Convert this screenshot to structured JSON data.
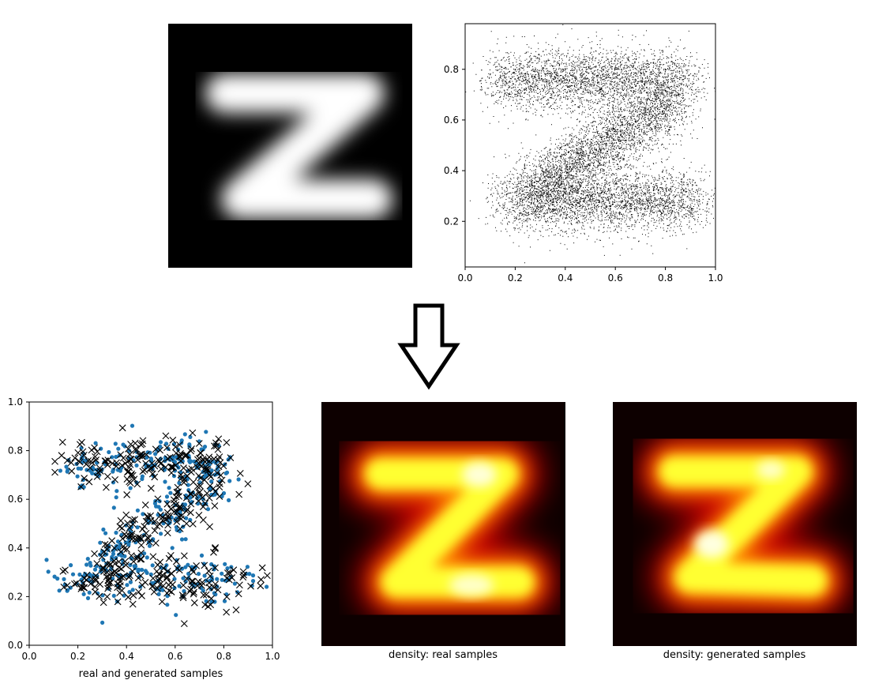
{
  "chart_data": [
    {
      "type": "image",
      "title": "",
      "xlabel": "",
      "ylabel": "",
      "colormap": "gray",
      "depicts": "Z"
    },
    {
      "type": "scatter",
      "title": "",
      "xlabel": "",
      "ylabel": "",
      "xlim": [
        0,
        1.0
      ],
      "ylim": [
        0.02,
        0.98
      ],
      "xticks": [
        "0.0",
        "0.2",
        "0.4",
        "0.6",
        "0.8",
        "1.0"
      ],
      "yticks": [
        "0.2",
        "0.4",
        "0.6",
        "0.8"
      ],
      "marker": "pixel",
      "color": "#000000",
      "point_count_approx": 12000,
      "shape_segments": [
        {
          "from": [
            0.13,
            0.76
          ],
          "to": [
            0.88,
            0.76
          ],
          "spread": 0.06
        },
        {
          "from": [
            0.84,
            0.68
          ],
          "to": [
            0.26,
            0.32
          ],
          "spread": 0.06
        },
        {
          "from": [
            0.17,
            0.28
          ],
          "to": [
            0.92,
            0.28
          ],
          "spread": 0.06
        }
      ]
    },
    {
      "type": "scatter",
      "title": "",
      "xlabel": "real and generated samples",
      "ylabel": "",
      "xlim": [
        0.0,
        1.0
      ],
      "ylim": [
        0.0,
        1.0
      ],
      "xticks": [
        "0.0",
        "0.2",
        "0.4",
        "0.6",
        "0.8",
        "1.0"
      ],
      "yticks": [
        "0.0",
        "0.2",
        "0.4",
        "0.6",
        "0.8",
        "1.0"
      ],
      "series": [
        {
          "marker": "dot",
          "color": "#1f77b4",
          "count_approx": 500
        },
        {
          "marker": "x",
          "color": "#000000",
          "count_approx": 500
        }
      ],
      "shape_segments": [
        {
          "from": [
            0.17,
            0.75
          ],
          "to": [
            0.82,
            0.75
          ],
          "spread": 0.05
        },
        {
          "from": [
            0.78,
            0.68
          ],
          "to": [
            0.3,
            0.34
          ],
          "spread": 0.05
        },
        {
          "from": [
            0.17,
            0.27
          ],
          "to": [
            0.92,
            0.27
          ],
          "spread": 0.05
        }
      ]
    },
    {
      "type": "heatmap",
      "title": "",
      "xlabel": "density: real samples",
      "ylabel": "",
      "colormap": "hot",
      "depicts": "Z"
    },
    {
      "type": "heatmap",
      "title": "",
      "xlabel": "density: generated samples",
      "ylabel": "",
      "colormap": "hot",
      "depicts": "Z"
    }
  ],
  "arrow": {
    "direction": "down",
    "icon": "down-arrow-icon"
  }
}
